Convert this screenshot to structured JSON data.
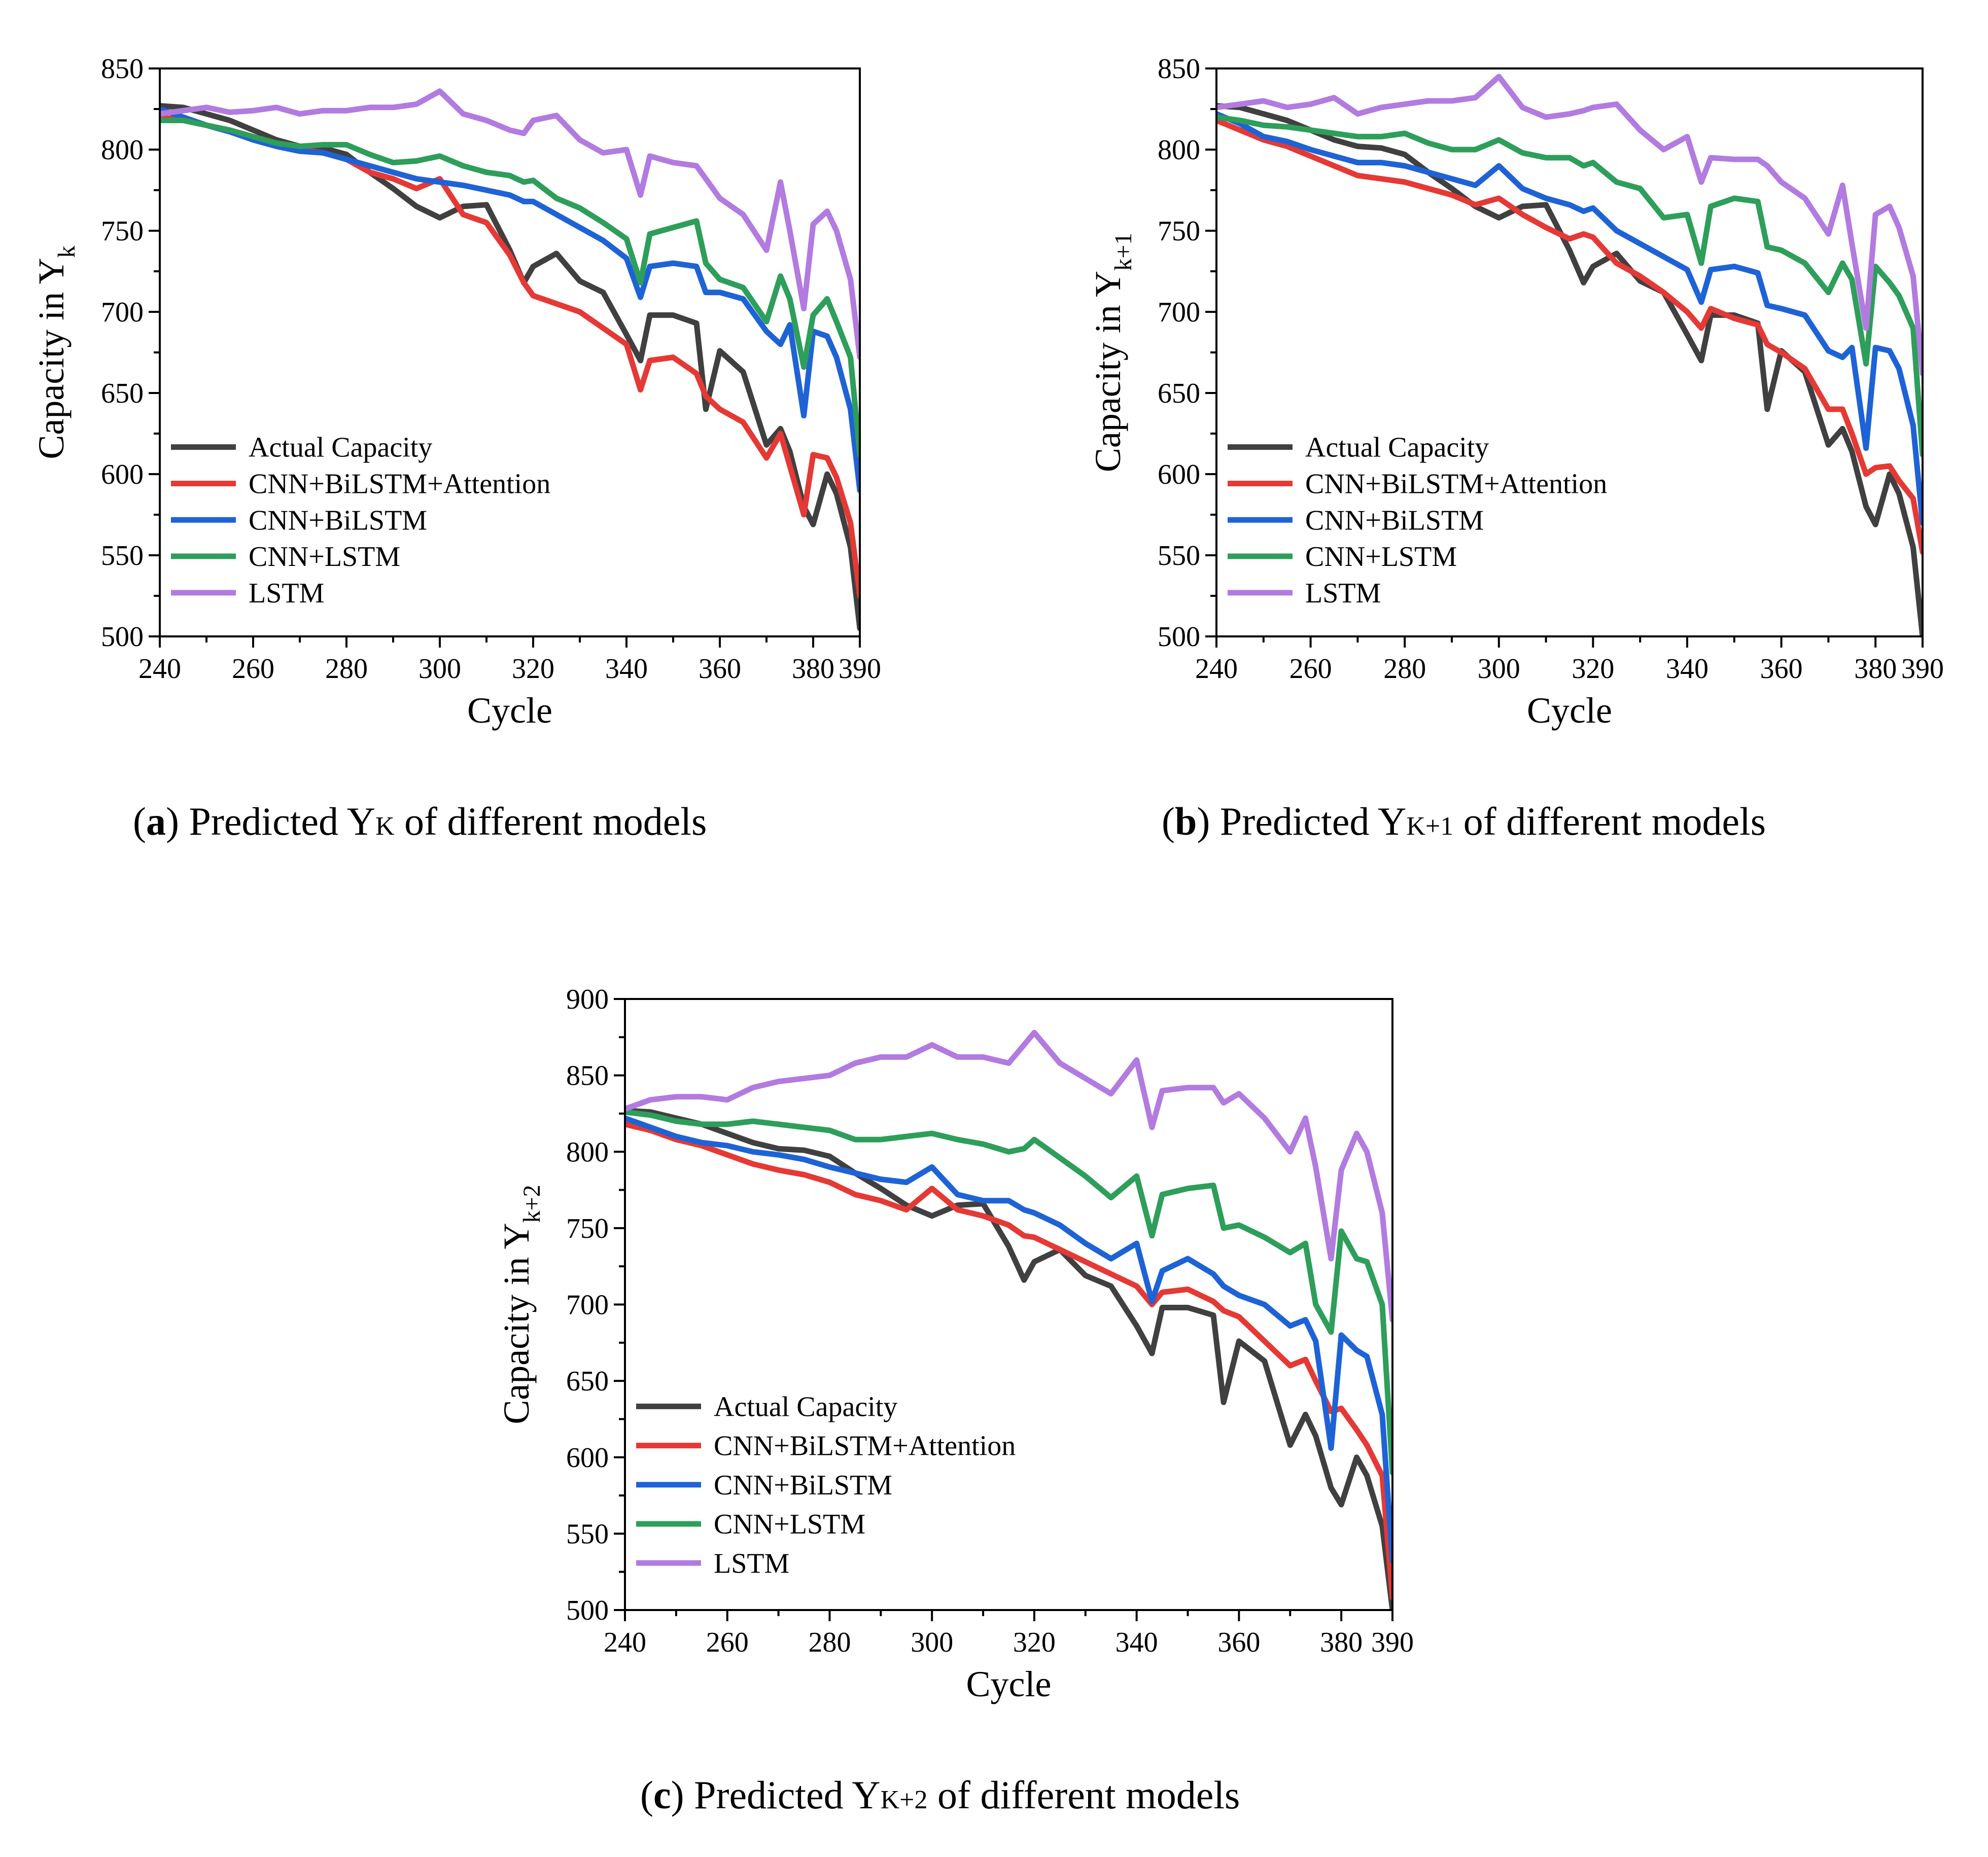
{
  "series_colors": {
    "Actual Capacity": "#404040",
    "CNN+BiLSTM+Attention": "#e53935",
    "CNN+BiLSTM": "#1e63d6",
    "CNN+LSTM": "#2e9e5b",
    "LSTM": "#b27be0"
  },
  "chart_data": [
    {
      "id": "a",
      "type": "line",
      "xlabel": "Cycle",
      "ylabel_main": "Capacity in Y",
      "ylabel_sub": "k",
      "xlim": [
        240,
        390
      ],
      "ylim": [
        500,
        850
      ],
      "xticks": [
        240,
        260,
        280,
        300,
        320,
        340,
        360,
        380,
        390
      ],
      "yticks": [
        500,
        550,
        600,
        650,
        700,
        750,
        800,
        850
      ],
      "x": [
        240,
        245,
        250,
        255,
        260,
        265,
        270,
        275,
        280,
        285,
        290,
        295,
        300,
        305,
        310,
        315,
        318,
        320,
        325,
        330,
        335,
        340,
        343,
        345,
        350,
        355,
        357,
        360,
        365,
        370,
        373,
        375,
        378,
        380,
        383,
        385,
        388,
        390
      ],
      "series": [
        {
          "name": "Actual Capacity",
          "values": [
            827,
            826,
            822,
            818,
            812,
            806,
            802,
            801,
            797,
            786,
            776,
            765,
            758,
            765,
            766,
            738,
            718,
            728,
            736,
            719,
            712,
            686,
            670,
            698,
            698,
            693,
            640,
            676,
            663,
            618,
            628,
            614,
            580,
            569,
            600,
            588,
            555,
            505
          ]
        },
        {
          "name": "CNN+BiLSTM+Attention",
          "values": [
            820,
            818,
            815,
            812,
            806,
            802,
            800,
            798,
            794,
            786,
            782,
            776,
            782,
            760,
            755,
            735,
            718,
            710,
            705,
            700,
            690,
            680,
            652,
            670,
            672,
            662,
            648,
            640,
            632,
            610,
            625,
            605,
            575,
            612,
            610,
            598,
            570,
            525
          ]
        },
        {
          "name": "CNN+BiLSTM",
          "values": [
            825,
            820,
            815,
            811,
            806,
            802,
            799,
            798,
            794,
            790,
            786,
            782,
            780,
            778,
            775,
            772,
            768,
            768,
            760,
            752,
            744,
            733,
            709,
            728,
            730,
            728,
            712,
            712,
            708,
            688,
            680,
            692,
            636,
            688,
            685,
            672,
            640,
            590
          ]
        },
        {
          "name": "CNN+LSTM",
          "values": [
            818,
            818,
            815,
            812,
            808,
            804,
            802,
            803,
            803,
            797,
            792,
            793,
            796,
            790,
            786,
            784,
            780,
            781,
            770,
            764,
            755,
            745,
            718,
            748,
            752,
            756,
            730,
            720,
            715,
            694,
            722,
            708,
            666,
            698,
            708,
            694,
            672,
            612
          ]
        },
        {
          "name": "LSTM",
          "values": [
            822,
            824,
            826,
            823,
            824,
            826,
            822,
            824,
            824,
            826,
            826,
            828,
            836,
            822,
            818,
            812,
            810,
            818,
            821,
            806,
            798,
            800,
            772,
            796,
            792,
            790,
            782,
            770,
            760,
            738,
            780,
            750,
            702,
            754,
            762,
            750,
            720,
            672
          ]
        }
      ],
      "legend": [
        "Actual Capacity",
        "CNN+BiLSTM+Attention",
        "CNN+BiLSTM",
        "CNN+LSTM",
        "LSTM"
      ],
      "legend_position": "bottom-left"
    },
    {
      "id": "b",
      "type": "line",
      "xlabel": "Cycle",
      "ylabel_main": "Capacity in Y",
      "ylabel_sub": "k+1",
      "xlim": [
        240,
        390
      ],
      "ylim": [
        500,
        850
      ],
      "xticks": [
        240,
        260,
        280,
        300,
        320,
        340,
        360,
        380,
        390
      ],
      "yticks": [
        500,
        550,
        600,
        650,
        700,
        750,
        800,
        850
      ],
      "x": [
        240,
        245,
        250,
        255,
        260,
        265,
        270,
        275,
        280,
        285,
        290,
        295,
        300,
        305,
        310,
        315,
        318,
        320,
        325,
        330,
        335,
        340,
        343,
        345,
        350,
        355,
        357,
        360,
        365,
        370,
        373,
        375,
        378,
        380,
        383,
        385,
        388,
        390
      ],
      "series": [
        {
          "name": "Actual Capacity",
          "values": [
            827,
            826,
            822,
            818,
            812,
            806,
            802,
            801,
            797,
            786,
            776,
            765,
            758,
            765,
            766,
            738,
            718,
            728,
            736,
            719,
            712,
            686,
            670,
            698,
            698,
            693,
            640,
            676,
            663,
            618,
            628,
            614,
            580,
            569,
            600,
            588,
            555,
            500
          ]
        },
        {
          "name": "CNN+BiLSTM+Attention",
          "values": [
            818,
            812,
            806,
            802,
            796,
            790,
            784,
            782,
            780,
            776,
            772,
            766,
            770,
            760,
            752,
            745,
            748,
            746,
            730,
            722,
            712,
            700,
            690,
            702,
            696,
            692,
            680,
            675,
            665,
            640,
            640,
            625,
            600,
            604,
            605,
            596,
            585,
            552
          ]
        },
        {
          "name": "CNN+BiLSTM",
          "values": [
            822,
            816,
            808,
            805,
            800,
            796,
            792,
            792,
            790,
            786,
            782,
            778,
            790,
            776,
            770,
            766,
            762,
            764,
            750,
            742,
            734,
            726,
            706,
            726,
            728,
            724,
            704,
            702,
            698,
            676,
            672,
            678,
            616,
            678,
            676,
            665,
            630,
            570
          ]
        },
        {
          "name": "CNN+LSTM",
          "values": [
            820,
            818,
            815,
            814,
            812,
            810,
            808,
            808,
            810,
            804,
            800,
            800,
            806,
            798,
            795,
            795,
            790,
            792,
            780,
            776,
            758,
            760,
            730,
            765,
            770,
            768,
            740,
            738,
            730,
            712,
            730,
            720,
            668,
            728,
            718,
            710,
            690,
            612
          ]
        },
        {
          "name": "LSTM",
          "values": [
            826,
            828,
            830,
            826,
            828,
            832,
            822,
            826,
            828,
            830,
            830,
            832,
            845,
            826,
            820,
            822,
            824,
            826,
            828,
            812,
            800,
            808,
            780,
            795,
            794,
            794,
            790,
            780,
            770,
            748,
            778,
            742,
            690,
            760,
            765,
            752,
            722,
            662
          ]
        }
      ],
      "legend": [
        "Actual Capacity",
        "CNN+BiLSTM+Attention",
        "CNN+BiLSTM",
        "CNN+LSTM",
        "LSTM"
      ],
      "legend_position": "bottom-left"
    },
    {
      "id": "c",
      "type": "line",
      "xlabel": "Cycle",
      "ylabel_main": "Capacity in Y",
      "ylabel_sub": "k+2",
      "xlim": [
        240,
        390
      ],
      "ylim": [
        500,
        900
      ],
      "xticks": [
        240,
        260,
        280,
        300,
        320,
        340,
        360,
        380,
        390
      ],
      "yticks": [
        500,
        550,
        600,
        650,
        700,
        750,
        800,
        850,
        900
      ],
      "x": [
        240,
        245,
        250,
        255,
        260,
        265,
        270,
        275,
        280,
        285,
        290,
        295,
        300,
        305,
        310,
        315,
        318,
        320,
        325,
        330,
        335,
        340,
        343,
        345,
        350,
        355,
        357,
        360,
        365,
        370,
        373,
        375,
        378,
        380,
        383,
        385,
        388,
        390
      ],
      "series": [
        {
          "name": "Actual Capacity",
          "values": [
            827,
            826,
            822,
            818,
            812,
            806,
            802,
            801,
            797,
            786,
            776,
            765,
            758,
            765,
            766,
            738,
            716,
            728,
            736,
            719,
            712,
            686,
            668,
            698,
            698,
            693,
            636,
            676,
            663,
            608,
            628,
            614,
            580,
            569,
            600,
            588,
            555,
            500
          ]
        },
        {
          "name": "CNN+BiLSTM+Attention",
          "values": [
            818,
            814,
            808,
            804,
            798,
            792,
            788,
            785,
            780,
            772,
            768,
            762,
            776,
            762,
            758,
            752,
            745,
            744,
            736,
            728,
            720,
            712,
            700,
            708,
            710,
            702,
            696,
            692,
            676,
            660,
            664,
            650,
            630,
            632,
            618,
            608,
            588,
            508
          ]
        },
        {
          "name": "CNN+BiLSTM",
          "values": [
            822,
            816,
            810,
            806,
            804,
            800,
            798,
            795,
            790,
            786,
            782,
            780,
            790,
            772,
            768,
            768,
            762,
            760,
            752,
            740,
            730,
            740,
            702,
            722,
            730,
            720,
            712,
            706,
            700,
            686,
            690,
            676,
            606,
            680,
            670,
            666,
            628,
            532
          ]
        },
        {
          "name": "CNN+LSTM",
          "values": [
            826,
            824,
            820,
            818,
            818,
            820,
            818,
            816,
            814,
            808,
            808,
            810,
            812,
            808,
            805,
            800,
            802,
            808,
            796,
            784,
            770,
            784,
            745,
            772,
            776,
            778,
            750,
            752,
            744,
            734,
            740,
            700,
            682,
            748,
            730,
            728,
            700,
            590
          ]
        },
        {
          "name": "LSTM",
          "values": [
            828,
            834,
            836,
            836,
            834,
            842,
            846,
            848,
            850,
            858,
            862,
            862,
            870,
            862,
            862,
            858,
            870,
            878,
            858,
            848,
            838,
            860,
            816,
            840,
            842,
            842,
            832,
            838,
            822,
            800,
            822,
            790,
            730,
            788,
            812,
            800,
            760,
            690
          ]
        }
      ],
      "legend": [
        "Actual Capacity",
        "CNN+BiLSTM+Attention",
        "CNN+BiLSTM",
        "CNN+LSTM",
        "LSTM"
      ],
      "legend_position": "bottom-left"
    }
  ],
  "captions": [
    {
      "id": "a",
      "letter": "a",
      "before": ") Predicted Y",
      "sub": "K",
      "after": " of different models"
    },
    {
      "id": "b",
      "letter": "b",
      "before": ") Predicted Y",
      "sub": "K+1",
      "after": " of different models"
    },
    {
      "id": "c",
      "letter": "c",
      "before": ") Predicted Y",
      "sub": "K+2",
      "after": " of different models"
    }
  ]
}
